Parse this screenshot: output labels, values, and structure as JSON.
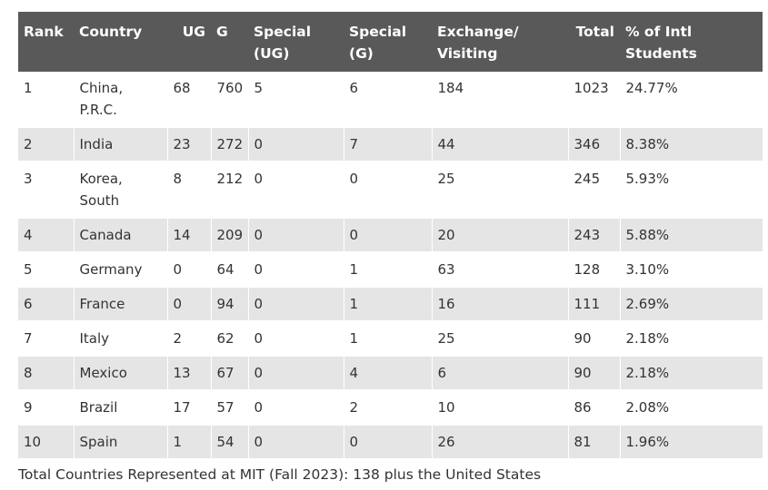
{
  "table": {
    "headers": {
      "rank": "Rank",
      "country": "Country",
      "ug": "UG",
      "g": "G",
      "special_ug": "Special (UG)",
      "special_g": "Special (G)",
      "exchange": "Exchange/ Visiting",
      "total": "Total",
      "pct": "% of Intl Students"
    },
    "rows": [
      {
        "rank": "1",
        "country": "China, P.R.C.",
        "ug": "68",
        "g": "760",
        "special_ug": "5",
        "special_g": "6",
        "exchange": "184",
        "total": "1023",
        "pct": "24.77%"
      },
      {
        "rank": "2",
        "country": "India",
        "ug": "23",
        "g": "272",
        "special_ug": "0",
        "special_g": "7",
        "exchange": "44",
        "total": "346",
        "pct": "8.38%"
      },
      {
        "rank": "3",
        "country": "Korea, South",
        "ug": "8",
        "g": "212",
        "special_ug": "0",
        "special_g": "0",
        "exchange": "25",
        "total": "245",
        "pct": "5.93%"
      },
      {
        "rank": "4",
        "country": "Canada",
        "ug": "14",
        "g": "209",
        "special_ug": "0",
        "special_g": "0",
        "exchange": "20",
        "total": "243",
        "pct": "5.88%"
      },
      {
        "rank": "5",
        "country": "Germany",
        "ug": "0",
        "g": "64",
        "special_ug": "0",
        "special_g": "1",
        "exchange": "63",
        "total": "128",
        "pct": "3.10%"
      },
      {
        "rank": "6",
        "country": "France",
        "ug": "0",
        "g": "94",
        "special_ug": "0",
        "special_g": "1",
        "exchange": "16",
        "total": "111",
        "pct": "2.69%"
      },
      {
        "rank": "7",
        "country": "Italy",
        "ug": "2",
        "g": "62",
        "special_ug": "0",
        "special_g": "1",
        "exchange": "25",
        "total": "90",
        "pct": "2.18%"
      },
      {
        "rank": "8",
        "country": "Mexico",
        "ug": "13",
        "g": "67",
        "special_ug": "0",
        "special_g": "4",
        "exchange": "6",
        "total": "90",
        "pct": "2.18%"
      },
      {
        "rank": "9",
        "country": "Brazil",
        "ug": "17",
        "g": "57",
        "special_ug": "0",
        "special_g": "2",
        "exchange": "10",
        "total": "86",
        "pct": "2.08%"
      },
      {
        "rank": "10",
        "country": "Spain",
        "ug": "1",
        "g": "54",
        "special_ug": "0",
        "special_g": "0",
        "exchange": "26",
        "total": "81",
        "pct": "1.96%"
      }
    ]
  },
  "footer": {
    "text": "Total Countries Represented at MIT (Fall 2023): 138 plus the United States"
  },
  "colors": {
    "header_bg": "#595959",
    "header_text": "#ffffff",
    "stripe": "#e5e5e5",
    "body_text": "#333333"
  }
}
